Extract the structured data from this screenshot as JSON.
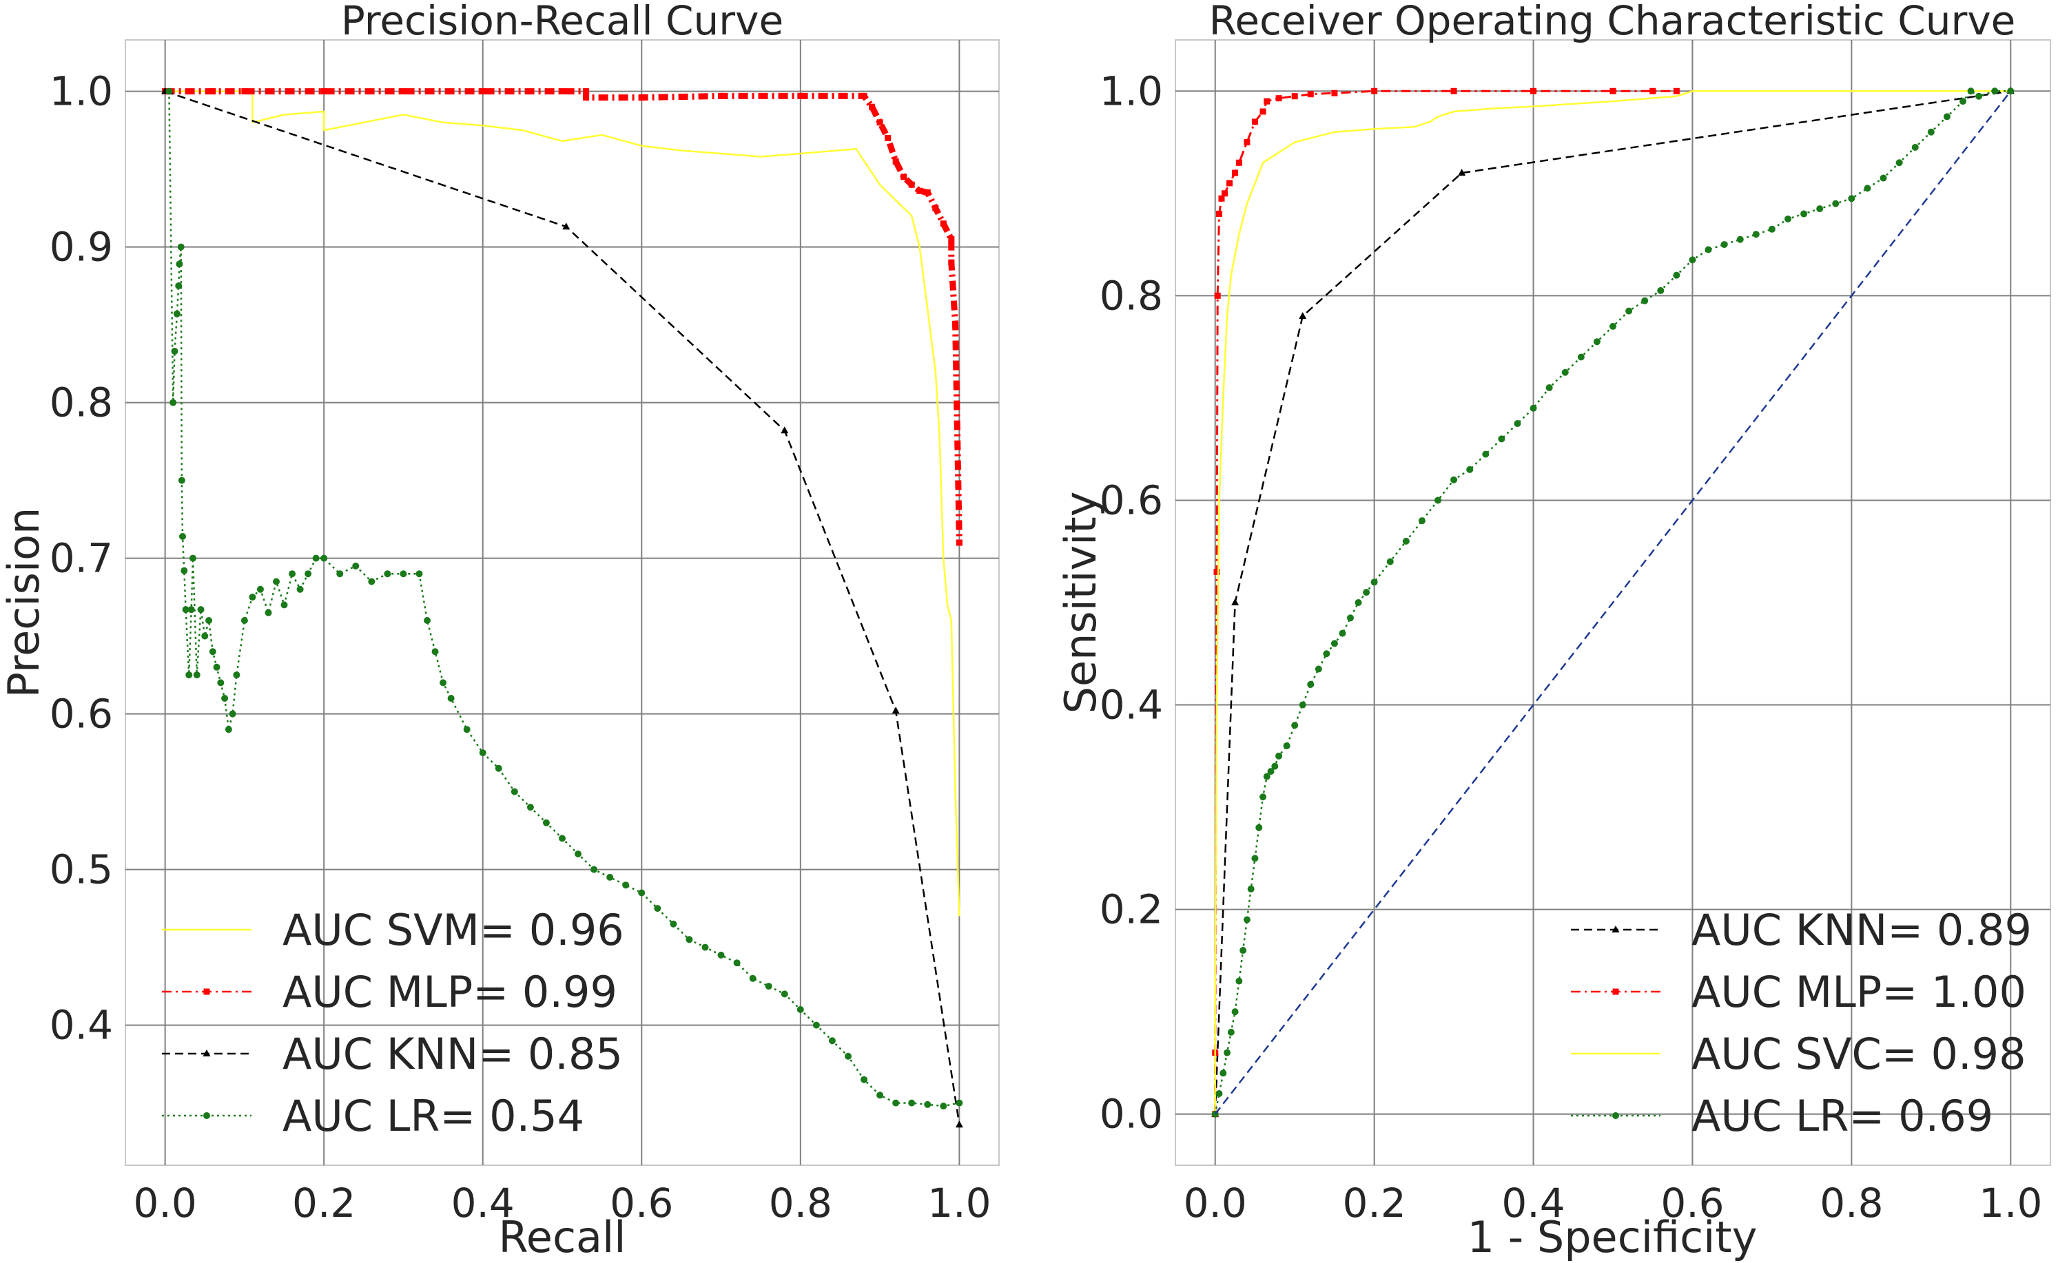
{
  "chart_data": [
    {
      "type": "line",
      "title": "Precision-Recall Curve",
      "xlabel": "Recall",
      "ylabel": "Precision",
      "xlim": [
        -0.05,
        1.05
      ],
      "ylim": [
        0.31,
        1.033
      ],
      "xticks": [
        0.0,
        0.2,
        0.4,
        0.6,
        0.8,
        1.0
      ],
      "xtick_labels": [
        "0.0",
        "0.2",
        "0.4",
        "0.6",
        "0.8",
        "1.0"
      ],
      "yticks": [
        0.4,
        0.5,
        0.6,
        0.7,
        0.8,
        0.9,
        1.0
      ],
      "ytick_labels": [
        "0.4",
        "0.5",
        "0.6",
        "0.7",
        "0.8",
        "0.9",
        "1.0"
      ],
      "grid": true,
      "legend_position": "lower-left",
      "series": [
        {
          "name": "AUC SVM= 0.96",
          "color": "#ffff33",
          "style": "solid",
          "marker": "none",
          "x": [
            0.0,
            0.11,
            0.11,
            0.15,
            0.2,
            0.2,
            0.25,
            0.3,
            0.35,
            0.4,
            0.45,
            0.5,
            0.55,
            0.6,
            0.65,
            0.7,
            0.75,
            0.8,
            0.87,
            0.9,
            0.92,
            0.94,
            0.95,
            0.955,
            0.96,
            0.965,
            0.97,
            0.975,
            0.98,
            0.985,
            0.99,
            0.995,
            1.0
          ],
          "y": [
            1.0,
            1.0,
            0.98,
            0.985,
            0.987,
            0.975,
            0.98,
            0.985,
            0.98,
            0.978,
            0.975,
            0.968,
            0.972,
            0.965,
            0.962,
            0.96,
            0.958,
            0.96,
            0.963,
            0.94,
            0.93,
            0.92,
            0.9,
            0.88,
            0.86,
            0.84,
            0.82,
            0.78,
            0.7,
            0.67,
            0.66,
            0.55,
            0.47
          ]
        },
        {
          "name": "AUC MLP= 0.99",
          "color": "#ff0000",
          "style": "dashdot",
          "marker": "square",
          "x": [
            0.0,
            0.06,
            0.1,
            0.2,
            0.3,
            0.4,
            0.5,
            0.53,
            0.53,
            0.6,
            0.7,
            0.8,
            0.88,
            0.89,
            0.9,
            0.91,
            0.92,
            0.93,
            0.94,
            0.95,
            0.96,
            0.97,
            0.98,
            0.99,
            0.99,
            0.995,
            1.0
          ],
          "y": [
            1.0,
            1.0,
            1.0,
            1.0,
            1.0,
            1.0,
            1.0,
            1.0,
            0.996,
            0.996,
            0.997,
            0.997,
            0.997,
            0.99,
            0.98,
            0.97,
            0.955,
            0.945,
            0.94,
            0.936,
            0.935,
            0.925,
            0.915,
            0.905,
            0.89,
            0.85,
            0.71
          ]
        },
        {
          "name": "AUC KNN= 0.85",
          "color": "#000000",
          "style": "dashed",
          "marker": "triangle",
          "x": [
            0.0,
            0.505,
            0.78,
            0.92,
            1.0
          ],
          "y": [
            1.0,
            0.913,
            0.782,
            0.602,
            0.336
          ]
        },
        {
          "name": "AUC LR= 0.54",
          "color": "#1a7a1a",
          "style": "dotted",
          "marker": "circle",
          "x": [
            0.005,
            0.01,
            0.012,
            0.015,
            0.017,
            0.018,
            0.02,
            0.021,
            0.022,
            0.024,
            0.026,
            0.03,
            0.033,
            0.035,
            0.04,
            0.045,
            0.05,
            0.055,
            0.06,
            0.065,
            0.07,
            0.075,
            0.08,
            0.085,
            0.09,
            0.1,
            0.11,
            0.12,
            0.13,
            0.14,
            0.15,
            0.16,
            0.17,
            0.18,
            0.19,
            0.2,
            0.22,
            0.24,
            0.26,
            0.28,
            0.3,
            0.32,
            0.33,
            0.34,
            0.35,
            0.36,
            0.38,
            0.4,
            0.42,
            0.44,
            0.46,
            0.48,
            0.5,
            0.52,
            0.54,
            0.56,
            0.58,
            0.6,
            0.62,
            0.64,
            0.66,
            0.68,
            0.7,
            0.72,
            0.74,
            0.76,
            0.78,
            0.8,
            0.82,
            0.84,
            0.86,
            0.88,
            0.9,
            0.92,
            0.94,
            0.96,
            0.98,
            1.0
          ],
          "y": [
            1.0,
            0.8,
            0.833,
            0.857,
            0.875,
            0.889,
            0.9,
            0.75,
            0.714,
            0.692,
            0.667,
            0.625,
            0.667,
            0.7,
            0.625,
            0.667,
            0.65,
            0.66,
            0.64,
            0.63,
            0.62,
            0.61,
            0.59,
            0.6,
            0.625,
            0.66,
            0.675,
            0.68,
            0.665,
            0.685,
            0.67,
            0.69,
            0.68,
            0.69,
            0.7,
            0.7,
            0.69,
            0.695,
            0.685,
            0.69,
            0.69,
            0.69,
            0.66,
            0.64,
            0.62,
            0.61,
            0.59,
            0.575,
            0.565,
            0.55,
            0.54,
            0.53,
            0.52,
            0.51,
            0.5,
            0.495,
            0.49,
            0.485,
            0.475,
            0.465,
            0.455,
            0.45,
            0.445,
            0.44,
            0.43,
            0.425,
            0.42,
            0.41,
            0.4,
            0.39,
            0.38,
            0.365,
            0.355,
            0.35,
            0.35,
            0.349,
            0.348,
            0.35
          ]
        }
      ]
    },
    {
      "type": "line",
      "title": "Receiver Operating Characteristic Curve",
      "xlabel": "1 - Specificity",
      "ylabel": "Sensitivity",
      "xlim": [
        -0.05,
        1.05
      ],
      "ylim": [
        -0.05,
        1.05
      ],
      "xticks": [
        0.0,
        0.2,
        0.4,
        0.6,
        0.8,
        1.0
      ],
      "xtick_labels": [
        "0.0",
        "0.2",
        "0.4",
        "0.6",
        "0.8",
        "1.0"
      ],
      "yticks": [
        0.0,
        0.2,
        0.4,
        0.6,
        0.8,
        1.0
      ],
      "ytick_labels": [
        "0.0",
        "0.2",
        "0.4",
        "0.6",
        "0.8",
        "1.0"
      ],
      "grid": true,
      "legend_position": "lower-right",
      "series": [
        {
          "name": "AUC KNN= 0.89",
          "color": "#000000",
          "style": "dashed",
          "marker": "triangle",
          "x": [
            0.0,
            0.025,
            0.11,
            0.31,
            1.0
          ],
          "y": [
            0.0,
            0.5,
            0.78,
            0.92,
            1.0
          ]
        },
        {
          "name": "AUC MLP= 1.00",
          "color": "#ff0000",
          "style": "dashdot",
          "marker": "square",
          "x": [
            0.0,
            0.0,
            0.002,
            0.003,
            0.005,
            0.008,
            0.012,
            0.018,
            0.025,
            0.03,
            0.04,
            0.05,
            0.06,
            0.065,
            0.08,
            0.1,
            0.12,
            0.15,
            0.2,
            0.3,
            0.4,
            0.5,
            0.55,
            0.58
          ],
          "y": [
            0.0,
            0.06,
            0.53,
            0.8,
            0.88,
            0.895,
            0.9,
            0.91,
            0.92,
            0.93,
            0.95,
            0.97,
            0.98,
            0.99,
            0.993,
            0.995,
            0.997,
            0.998,
            1.0,
            1.0,
            1.0,
            1.0,
            1.0,
            1.0
          ]
        },
        {
          "name": "AUC SVC= 0.98",
          "color": "#ffff33",
          "style": "solid",
          "marker": "none",
          "x": [
            0.0,
            0.0,
            0.002,
            0.005,
            0.01,
            0.015,
            0.02,
            0.03,
            0.04,
            0.05,
            0.06,
            0.08,
            0.1,
            0.15,
            0.2,
            0.25,
            0.27,
            0.28,
            0.3,
            0.35,
            0.4,
            0.5,
            0.58,
            0.6,
            0.8,
            1.0
          ],
          "y": [
            0.0,
            0.12,
            0.4,
            0.6,
            0.7,
            0.78,
            0.82,
            0.86,
            0.89,
            0.91,
            0.93,
            0.94,
            0.95,
            0.96,
            0.963,
            0.965,
            0.97,
            0.975,
            0.98,
            0.983,
            0.985,
            0.99,
            0.995,
            1.0,
            1.0,
            1.0
          ]
        },
        {
          "name": "AUC LR= 0.69",
          "color": "#1a7a1a",
          "style": "dotted",
          "marker": "circle",
          "x": [
            0.0,
            0.005,
            0.01,
            0.015,
            0.02,
            0.025,
            0.03,
            0.035,
            0.04,
            0.045,
            0.05,
            0.055,
            0.06,
            0.065,
            0.07,
            0.075,
            0.08,
            0.09,
            0.1,
            0.11,
            0.12,
            0.13,
            0.14,
            0.15,
            0.16,
            0.17,
            0.18,
            0.19,
            0.2,
            0.22,
            0.24,
            0.26,
            0.28,
            0.3,
            0.32,
            0.34,
            0.36,
            0.38,
            0.4,
            0.42,
            0.44,
            0.46,
            0.48,
            0.5,
            0.52,
            0.54,
            0.56,
            0.58,
            0.6,
            0.62,
            0.64,
            0.66,
            0.68,
            0.7,
            0.72,
            0.74,
            0.76,
            0.78,
            0.8,
            0.82,
            0.84,
            0.86,
            0.88,
            0.9,
            0.92,
            0.94,
            0.95,
            0.96,
            0.98,
            1.0
          ],
          "y": [
            0.0,
            0.02,
            0.04,
            0.06,
            0.08,
            0.1,
            0.13,
            0.16,
            0.19,
            0.22,
            0.25,
            0.28,
            0.31,
            0.33,
            0.335,
            0.34,
            0.35,
            0.36,
            0.38,
            0.4,
            0.42,
            0.435,
            0.45,
            0.46,
            0.47,
            0.485,
            0.5,
            0.51,
            0.52,
            0.54,
            0.56,
            0.58,
            0.6,
            0.62,
            0.63,
            0.645,
            0.66,
            0.675,
            0.69,
            0.71,
            0.725,
            0.74,
            0.755,
            0.77,
            0.785,
            0.795,
            0.805,
            0.82,
            0.835,
            0.845,
            0.85,
            0.855,
            0.86,
            0.865,
            0.875,
            0.88,
            0.885,
            0.89,
            0.895,
            0.905,
            0.915,
            0.93,
            0.945,
            0.96,
            0.975,
            0.99,
            1.0,
            0.995,
            1.0,
            1.0
          ]
        },
        {
          "name": "",
          "color": "#1f3a93",
          "style": "dashed",
          "marker": "none",
          "x": [
            0.0,
            1.0
          ],
          "y": [
            0.0,
            1.0
          ]
        }
      ]
    }
  ]
}
